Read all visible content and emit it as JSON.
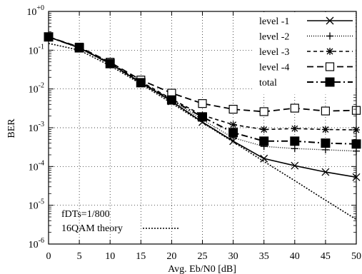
{
  "chart_data": {
    "type": "line",
    "title": "",
    "xlabel": "Avg. Eb/N0 [dB]",
    "ylabel": "BER",
    "xlim": [
      0,
      50
    ],
    "ylim_log10": [
      -6,
      0
    ],
    "y_scale": "log",
    "x_ticks": [
      "0",
      "5",
      "10",
      "15",
      "20",
      "25",
      "30",
      "35",
      "40",
      "45",
      "50"
    ],
    "y_ticks": [
      {
        "base": "10",
        "exp": "+0"
      },
      {
        "base": "10",
        "exp": "-1"
      },
      {
        "base": "10",
        "exp": "-2"
      },
      {
        "base": "10",
        "exp": "-3"
      },
      {
        "base": "10",
        "exp": "-4"
      },
      {
        "base": "10",
        "exp": "-5"
      },
      {
        "base": "10",
        "exp": "-6"
      }
    ],
    "grid": true,
    "legend_position": "top-right",
    "annotation": "fDTs=1/800",
    "series": [
      {
        "name": "level -1",
        "marker": "x",
        "dash": "solid",
        "x": [
          0,
          5,
          10,
          15,
          20,
          25,
          30,
          35,
          40,
          45,
          50
        ],
        "y": [
          0.22,
          0.115,
          0.045,
          0.0145,
          0.0048,
          0.0014,
          0.00045,
          0.00016,
          0.000105,
          7.2e-05,
          5.3e-05
        ]
      },
      {
        "name": "level -2",
        "marker": "plus",
        "dash": "dotted",
        "x": [
          0,
          5,
          10,
          15,
          20,
          25,
          30,
          35,
          40,
          45,
          50
        ],
        "y": [
          0.22,
          0.115,
          0.046,
          0.015,
          0.0052,
          0.0016,
          0.00055,
          0.00033,
          0.00029,
          0.00027,
          0.00025
        ]
      },
      {
        "name": "level -3",
        "marker": "asterisk",
        "dash": "dashed",
        "x": [
          0,
          5,
          10,
          15,
          20,
          25,
          30,
          35,
          40,
          45,
          50
        ],
        "y": [
          0.22,
          0.115,
          0.047,
          0.0155,
          0.0055,
          0.0021,
          0.0012,
          0.0009,
          0.00095,
          0.0009,
          0.00088
        ]
      },
      {
        "name": "level -4",
        "marker": "square-open",
        "dash": "long-dashed",
        "x": [
          0,
          5,
          10,
          15,
          20,
          25,
          30,
          35,
          40,
          45,
          50
        ],
        "y": [
          0.22,
          0.12,
          0.049,
          0.017,
          0.0078,
          0.0042,
          0.003,
          0.0026,
          0.0032,
          0.0027,
          0.0028
        ]
      },
      {
        "name": "total",
        "marker": "square-filled",
        "dash": "dash-dot",
        "x": [
          0,
          5,
          10,
          15,
          20,
          25,
          30,
          35,
          40,
          45,
          50
        ],
        "y": [
          0.22,
          0.115,
          0.045,
          0.0145,
          0.0052,
          0.0019,
          0.00075,
          0.00045,
          0.00045,
          0.0004,
          0.00038
        ]
      },
      {
        "name": "16QAM theory",
        "marker": "none",
        "dash": "dense-dotted",
        "x": [
          0,
          5,
          10,
          15,
          20,
          25,
          30,
          35,
          40,
          45,
          50
        ],
        "y": [
          0.15,
          0.1,
          0.04,
          0.0135,
          0.0043,
          0.00135,
          0.00043,
          0.000135,
          4.3e-05,
          1.35e-05,
          4.3e-06
        ]
      }
    ]
  }
}
